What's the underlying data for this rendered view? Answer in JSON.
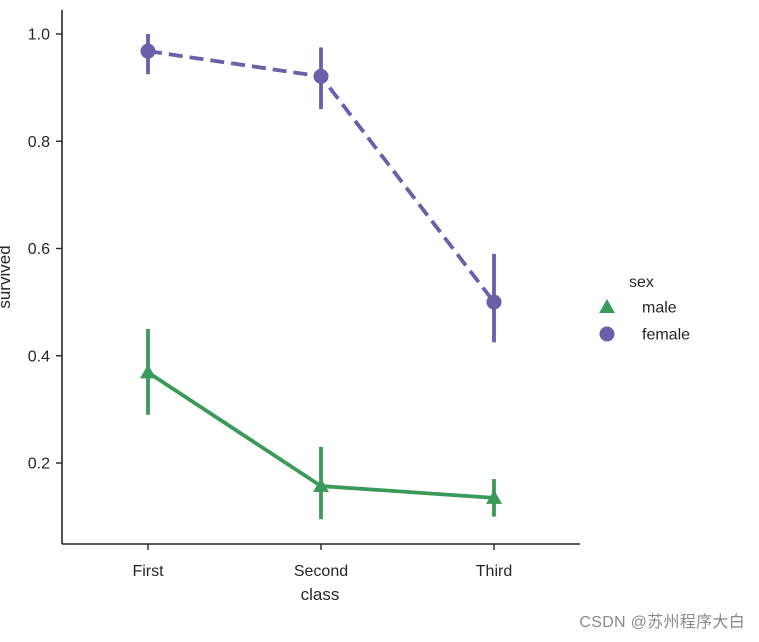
{
  "chart_data": {
    "type": "line",
    "categories": [
      "First",
      "Second",
      "Third"
    ],
    "xlabel": "class",
    "ylabel": "survived",
    "ylim": [
      0.05,
      1.05
    ],
    "yticks": [
      0.2,
      0.4,
      0.6,
      0.8,
      1.0
    ],
    "ytick_labels": [
      "0.2",
      "0.4",
      "0.6",
      "0.8",
      "1.0"
    ],
    "grid": false,
    "legend": {
      "title": "sex",
      "placement": "right"
    },
    "series": [
      {
        "name": "male",
        "values": [
          0.369,
          0.157,
          0.135
        ],
        "ci_low": [
          0.29,
          0.095,
          0.1
        ],
        "ci_high": [
          0.45,
          0.23,
          0.17
        ],
        "color": "#3a9a5a",
        "linestyle": "solid",
        "marker": "triangle"
      },
      {
        "name": "female",
        "values": [
          0.968,
          0.921,
          0.5
        ],
        "ci_low": [
          0.925,
          0.86,
          0.425
        ],
        "ci_high": [
          1.0,
          0.975,
          0.59
        ],
        "color": "#6a5fa8",
        "linestyle": "dashed",
        "marker": "circle"
      }
    ]
  },
  "watermark": "CSDN @苏州程序大白"
}
